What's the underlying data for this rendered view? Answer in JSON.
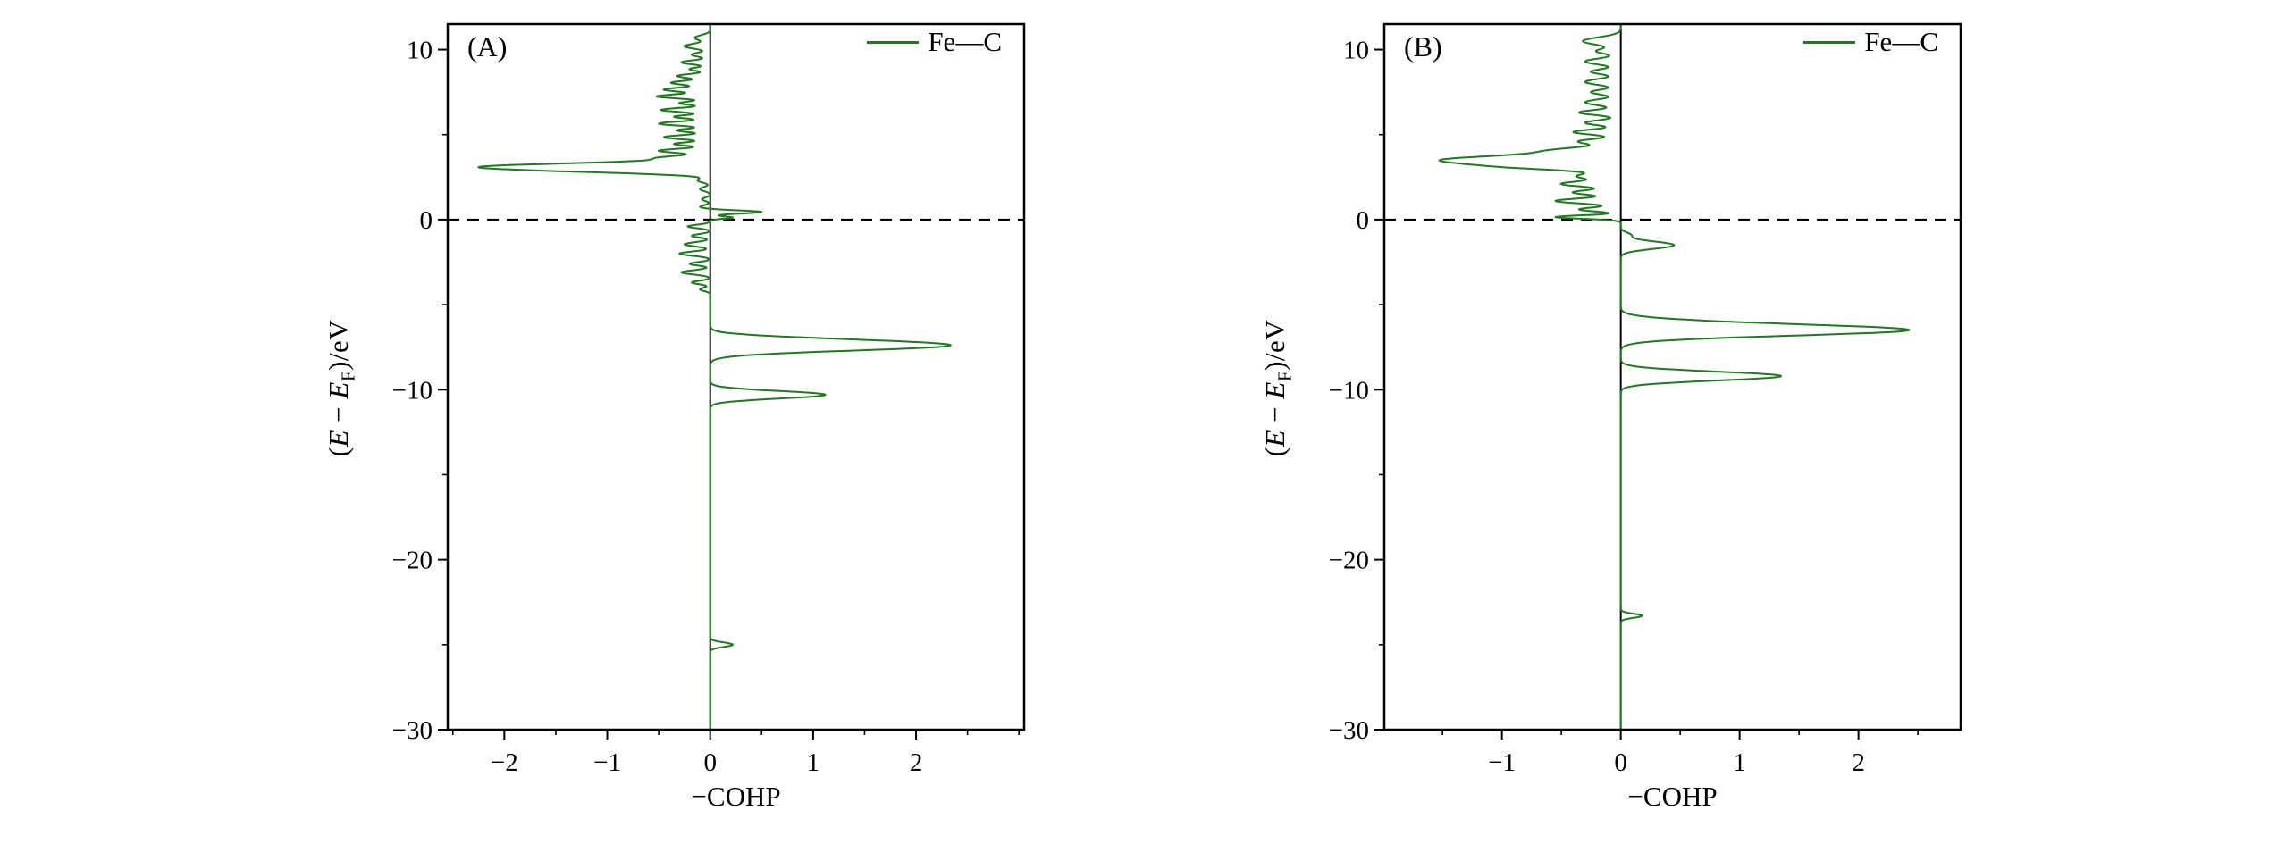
{
  "page": {
    "background": "#ffffff"
  },
  "chart_data": [
    {
      "type": "line",
      "panel_label": "(A)",
      "title": "",
      "xlabel": "−COHP",
      "ylabel": "(E − E_F)/eV",
      "ylabel_parts": [
        "(",
        "E",
        " − ",
        "E",
        "F",
        ")/eV"
      ],
      "legend": [
        "Fe—C"
      ],
      "legend_position": "top-right",
      "grid": false,
      "axis_color": "#000000",
      "fermi_dashed_line_y": 0,
      "zero_axis_line_x": 0,
      "xlim": [
        -2.55,
        3.05
      ],
      "ylim": [
        -30,
        11.5
      ],
      "xticks": [
        -2,
        -1,
        0,
        1,
        2
      ],
      "yticks": [
        10,
        0,
        -10,
        -20,
        -30
      ],
      "x_minor_step": 0.5,
      "y_minor_step": 5,
      "series": [
        {
          "name": "Fe—C",
          "color": "#1e7a1e",
          "peaks_center_height_sigma": [
            [
              10.7,
              -0.15,
              0.15
            ],
            [
              10.2,
              -0.25,
              0.15
            ],
            [
              9.7,
              -0.18,
              0.12
            ],
            [
              9.25,
              -0.28,
              0.12
            ],
            [
              8.85,
              -0.2,
              0.1
            ],
            [
              8.45,
              -0.32,
              0.12
            ],
            [
              8.05,
              -0.38,
              0.12
            ],
            [
              7.65,
              -0.45,
              0.12
            ],
            [
              7.25,
              -0.52,
              0.12
            ],
            [
              6.85,
              -0.3,
              0.1
            ],
            [
              6.45,
              -0.48,
              0.12
            ],
            [
              6.05,
              -0.35,
              0.1
            ],
            [
              5.65,
              -0.5,
              0.12
            ],
            [
              5.25,
              -0.32,
              0.1
            ],
            [
              4.85,
              -0.45,
              0.12
            ],
            [
              4.45,
              -0.35,
              0.1
            ],
            [
              4.05,
              -0.5,
              0.12
            ],
            [
              3.65,
              -0.42,
              0.12
            ],
            [
              3.1,
              -2.2,
              0.22
            ],
            [
              2.8,
              -0.35,
              0.15
            ],
            [
              2.3,
              -0.12,
              0.12
            ],
            [
              1.8,
              -0.1,
              0.12
            ],
            [
              1.2,
              -0.08,
              0.1
            ],
            [
              0.75,
              -0.1,
              0.1
            ],
            [
              0.45,
              0.5,
              0.09
            ],
            [
              0.12,
              0.22,
              0.07
            ],
            [
              -0.4,
              -0.22,
              0.1
            ],
            [
              -0.95,
              -0.18,
              0.1
            ],
            [
              -1.45,
              -0.25,
              0.12
            ],
            [
              -2.0,
              -0.3,
              0.12
            ],
            [
              -2.6,
              -0.2,
              0.1
            ],
            [
              -3.1,
              -0.28,
              0.12
            ],
            [
              -3.7,
              -0.18,
              0.1
            ],
            [
              -4.1,
              -0.1,
              0.1
            ],
            [
              -7.4,
              2.3,
              0.3
            ],
            [
              -7.0,
              0.25,
              0.2
            ],
            [
              -10.3,
              1.12,
              0.22
            ],
            [
              -25.0,
              0.22,
              0.13
            ]
          ]
        }
      ]
    },
    {
      "type": "line",
      "panel_label": "(B)",
      "title": "",
      "xlabel": "−COHP",
      "ylabel": "(E − E_F)/eV",
      "ylabel_parts": [
        "(",
        "E",
        " − ",
        "E",
        "F",
        ")/eV"
      ],
      "legend": [
        "Fe—C"
      ],
      "legend_position": "top-right",
      "grid": false,
      "axis_color": "#000000",
      "fermi_dashed_line_y": 0,
      "zero_axis_line_x": 0,
      "xlim": [
        -1.99,
        2.86
      ],
      "ylim": [
        -30,
        11.5
      ],
      "xticks": [
        -1,
        0,
        1,
        2
      ],
      "yticks": [
        10,
        0,
        -10,
        -20,
        -30
      ],
      "x_minor_step": 0.5,
      "y_minor_step": 5,
      "series": [
        {
          "name": "Fe—C",
          "color": "#1e7a1e",
          "peaks_center_height_sigma": [
            [
              10.5,
              -0.32,
              0.22
            ],
            [
              9.9,
              -0.2,
              0.15
            ],
            [
              9.3,
              -0.3,
              0.18
            ],
            [
              8.7,
              -0.25,
              0.15
            ],
            [
              8.1,
              -0.3,
              0.18
            ],
            [
              7.5,
              -0.25,
              0.15
            ],
            [
              6.9,
              -0.3,
              0.18
            ],
            [
              6.3,
              -0.35,
              0.15
            ],
            [
              5.7,
              -0.3,
              0.15
            ],
            [
              5.15,
              -0.4,
              0.15
            ],
            [
              4.6,
              -0.35,
              0.15
            ],
            [
              4.1,
              -0.45,
              0.18
            ],
            [
              3.5,
              -1.5,
              0.28
            ],
            [
              3.05,
              -0.5,
              0.18
            ],
            [
              2.55,
              -0.35,
              0.15
            ],
            [
              2.1,
              -0.5,
              0.16
            ],
            [
              1.6,
              -0.4,
              0.14
            ],
            [
              1.1,
              -0.55,
              0.15
            ],
            [
              0.6,
              -0.35,
              0.12
            ],
            [
              0.15,
              -0.55,
              0.1
            ],
            [
              -0.9,
              0.08,
              0.15
            ],
            [
              -1.5,
              0.45,
              0.22
            ],
            [
              -6.5,
              2.4,
              0.32
            ],
            [
              -6.0,
              0.2,
              0.25
            ],
            [
              -9.2,
              1.35,
              0.26
            ],
            [
              -23.3,
              0.18,
              0.12
            ]
          ]
        }
      ]
    }
  ]
}
